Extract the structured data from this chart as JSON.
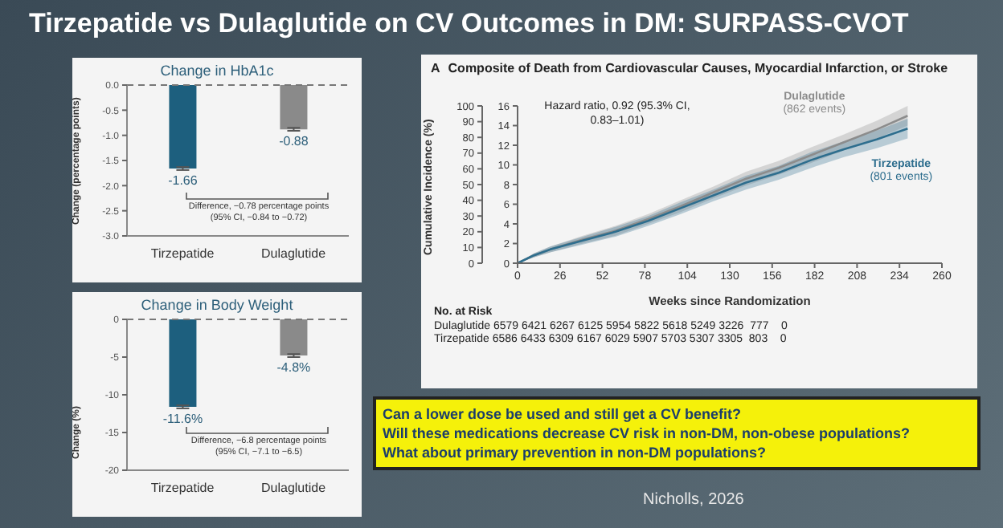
{
  "chart_data": [
    {
      "type": "bar",
      "title": "Change in HbA1c",
      "ylabel": "Change (percentage points)",
      "categories": [
        "Tirzepatide",
        "Dulaglutide"
      ],
      "values": [
        -1.66,
        -0.88
      ],
      "colors": [
        "#1d5f7e",
        "#8a8a8a"
      ],
      "errors": [
        0.03,
        0.03
      ],
      "data_labels": true,
      "ylim": [
        -3,
        0
      ],
      "yticks": [
        {
          "value": 0,
          "label": "0.0"
        },
        {
          "value": -0.5,
          "label": "-0.5"
        },
        {
          "value": -1,
          "label": "-1.0"
        },
        {
          "value": -1.5,
          "label": "-1.5"
        },
        {
          "value": -2,
          "label": "-2.0"
        },
        {
          "value": -2.5,
          "label": "-2.5"
        },
        {
          "value": -3,
          "label": "-3.0"
        }
      ],
      "ref_lines": [
        {
          "axis": "y",
          "value": 0,
          "line_style": "dashed",
          "color": "#777777"
        }
      ],
      "annotations": [
        "Difference, −0.78 percentage points (95% CI, −0.84 to −0.72)"
      ]
    },
    {
      "type": "bar",
      "title": "Change in Body Weight",
      "ylabel": "Change (%)",
      "categories": [
        "Tirzepatide",
        "Dulaglutide"
      ],
      "values": [
        -11.6,
        -4.8
      ],
      "colors": [
        "#1d5f7e",
        "#8a8a8a"
      ],
      "errors": [
        0.2,
        0.2
      ],
      "value_labels": [
        "-11.6%",
        "-4.8%"
      ],
      "ylim": [
        -20,
        0
      ],
      "yticks": [
        0,
        -5,
        -10,
        -15,
        -20
      ],
      "ref_lines": [
        {
          "axis": "y",
          "value": 0,
          "line_style": "dashed",
          "color": "#777777"
        }
      ],
      "annotations": [
        "Difference, −6.8 percentage points (95% CI, −7.1 to −6.5)"
      ]
    },
    {
      "type": "line",
      "title": "Composite of Death from Cardiovascular Causes, Myocardial Infarction, or Stroke",
      "xlabel": "Weeks since Randomization",
      "ylabel": "Cumulative Incidence (%)",
      "x": [
        0,
        10,
        20,
        40,
        60,
        80,
        100,
        120,
        140,
        160,
        180,
        200,
        220,
        239
      ],
      "series": [
        {
          "name": "Dulaglutide",
          "color": "#8c8c8c",
          "axis": "y2",
          "values": [
            0,
            0.8,
            1.4,
            2.4,
            3.3,
            4.5,
            5.8,
            7.2,
            8.6,
            9.7,
            11.0,
            12.3,
            13.6,
            15.0
          ],
          "lower": [
            0,
            0.6,
            1.1,
            2.0,
            2.8,
            4.0,
            5.2,
            6.6,
            7.9,
            9.0,
            10.2,
            11.5,
            12.7,
            14.0
          ],
          "upper": [
            0,
            1.0,
            1.7,
            2.8,
            3.8,
            5.0,
            6.4,
            7.8,
            9.3,
            10.4,
            11.8,
            13.1,
            14.5,
            16.0
          ]
        },
        {
          "name": "Tirzepatide",
          "color": "#2e6e8e",
          "axis": "y2",
          "values": [
            0,
            0.8,
            1.4,
            2.3,
            3.2,
            4.3,
            5.6,
            6.9,
            8.2,
            9.2,
            10.5,
            11.6,
            12.6,
            13.7
          ],
          "lower": [
            0,
            0.6,
            1.1,
            1.9,
            2.7,
            3.8,
            5.0,
            6.3,
            7.5,
            8.5,
            9.7,
            10.8,
            11.7,
            12.7
          ],
          "upper": [
            0,
            1.0,
            1.7,
            2.7,
            3.7,
            4.8,
            6.2,
            7.5,
            8.9,
            9.9,
            11.3,
            12.4,
            13.5,
            14.7
          ]
        }
      ],
      "xlim": [
        0,
        260
      ],
      "xticks": [
        0,
        26,
        52,
        78,
        104,
        130,
        156,
        182,
        208,
        234,
        260
      ],
      "ylim": [
        0,
        100
      ],
      "yticks": [
        0,
        10,
        20,
        30,
        40,
        50,
        60,
        70,
        80,
        90,
        100
      ],
      "y2lim": [
        0,
        16
      ],
      "y2ticks": [
        0,
        2,
        4,
        6,
        8,
        10,
        12,
        14,
        16
      ],
      "line_style": "solid",
      "marker": "none",
      "annotations": [
        "A",
        "Hazard ratio, 0.92 (95.3% CI, 0.83–1.01)",
        "(862 events)",
        "(801 events)",
        "No. at Risk",
        "Dulaglutide 6579 6421 6267 6125 5954 5822 5618 5249 3226  777    0",
        "Tirzepatide 6586 6433 6309 6167 6029 5907 5703 5307 3305  803    0"
      ]
    },
    {
      "type": "other",
      "title": "Tirzepatide vs Dulaglutide on CV Outcomes in DM: SURPASS-CVOT",
      "annotations": [
        "Can a lower dose be used and still get a CV benefit?",
        "Will these medications decrease CV risk in non-DM, non-obese populations?",
        "What about primary prevention in non-DM populations?",
        "Nicholls, 2026"
      ]
    }
  ]
}
